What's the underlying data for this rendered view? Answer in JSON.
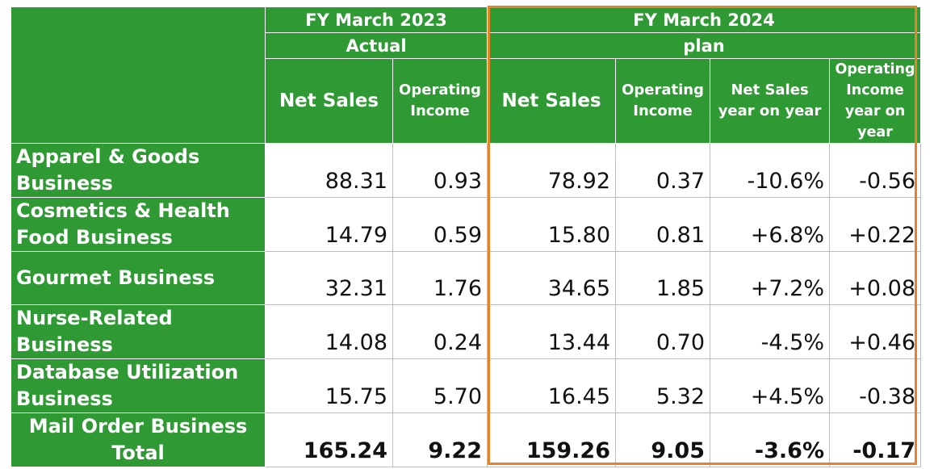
{
  "header": {
    "fy2023": "FY March 2023",
    "fy2024": "FY March 2024",
    "actual": "Actual",
    "plan": "plan",
    "net_sales": "Net Sales",
    "operating_income": "Operating Income",
    "net_sales_yoy": "Net Sales year on year",
    "operating_income_yoy": "Operating Income year on year"
  },
  "rows": [
    {
      "label": "Apparel & Goods Business",
      "ns23": "88.31",
      "oi23": "0.93",
      "ns24": "78.92",
      "oi24": "0.37",
      "ns_yoy": "-10.6%",
      "oi_yoy": "-0.56"
    },
    {
      "label": "Cosmetics & Health Food Business",
      "ns23": "14.79",
      "oi23": "0.59",
      "ns24": "15.80",
      "oi24": "0.81",
      "ns_yoy": "+6.8%",
      "oi_yoy": "+0.22"
    },
    {
      "label": "Gourmet Business",
      "ns23": "32.31",
      "oi23": "1.76",
      "ns24": "34.65",
      "oi24": "1.85",
      "ns_yoy": "+7.2%",
      "oi_yoy": "+0.08"
    },
    {
      "label": "Nurse-Related Business",
      "ns23": "14.08",
      "oi23": "0.24",
      "ns24": "13.44",
      "oi24": "0.70",
      "ns_yoy": "-4.5%",
      "oi_yoy": "+0.46"
    },
    {
      "label": "Database Utilization Business",
      "ns23": "15.75",
      "oi23": "5.70",
      "ns24": "16.45",
      "oi24": "5.32",
      "ns_yoy": "+4.5%",
      "oi_yoy": "-0.38"
    }
  ],
  "total": {
    "label": "Mail Order Business Total",
    "ns23": "165.24",
    "oi23": "9.22",
    "ns24": "159.26",
    "oi24": "9.05",
    "ns_yoy": "-3.6%",
    "oi_yoy": "-0.17"
  },
  "colors": {
    "header_green": "#2f9a34",
    "highlight_orange": "#e8822a"
  }
}
